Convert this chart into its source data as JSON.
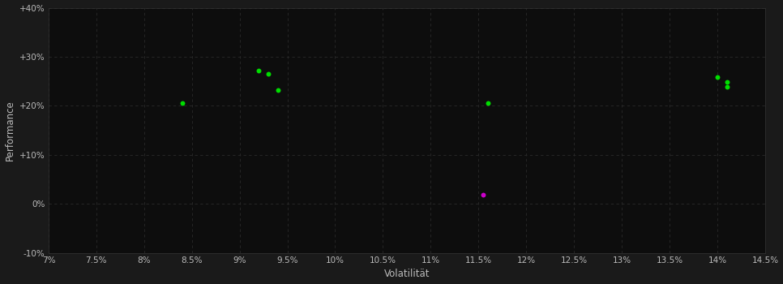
{
  "background_color": "#1a1a1a",
  "plot_bg_color": "#0d0d0d",
  "grid_color": "#2a2a2a",
  "text_color": "#bbbbbb",
  "xlabel": "Volatilität",
  "ylabel": "Performance",
  "xlim": [
    0.07,
    0.145
  ],
  "ylim": [
    -0.1,
    0.4
  ],
  "xticks": [
    0.07,
    0.075,
    0.08,
    0.085,
    0.09,
    0.095,
    0.1,
    0.105,
    0.11,
    0.115,
    0.12,
    0.125,
    0.13,
    0.135,
    0.14,
    0.145
  ],
  "yticks": [
    -0.1,
    0.0,
    0.1,
    0.2,
    0.3,
    0.4
  ],
  "green_points": [
    [
      0.084,
      0.205
    ],
    [
      0.092,
      0.272
    ],
    [
      0.093,
      0.265
    ],
    [
      0.094,
      0.232
    ],
    [
      0.116,
      0.205
    ],
    [
      0.14,
      0.258
    ],
    [
      0.141,
      0.248
    ],
    [
      0.141,
      0.238
    ]
  ],
  "magenta_points": [
    [
      0.1155,
      0.018
    ]
  ],
  "green_color": "#00dd00",
  "magenta_color": "#cc00cc",
  "point_size": 18,
  "tick_fontsize": 7.5,
  "label_fontsize": 8.5
}
